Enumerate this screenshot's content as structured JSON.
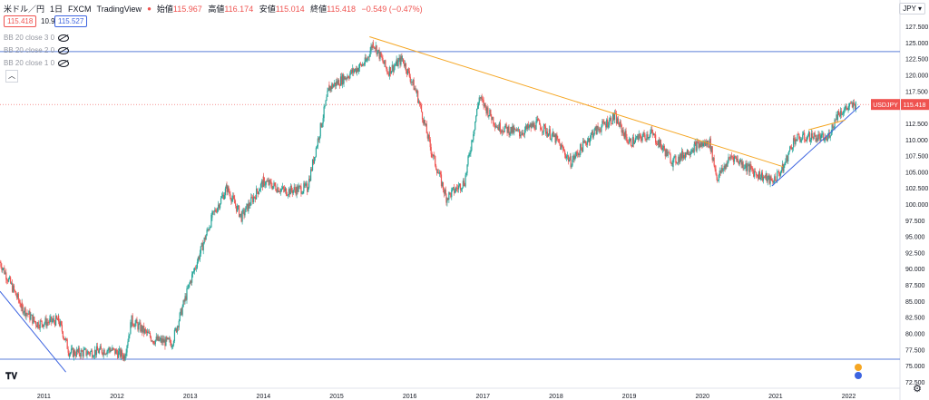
{
  "header": {
    "symbol": "米ドル／円",
    "interval": "1日",
    "broker": "FXCM",
    "platform": "TradingView",
    "open_label": "始値",
    "open": "115.967",
    "high_label": "高値",
    "high": "116.174",
    "low_label": "安値",
    "low": "115.014",
    "close_label": "終値",
    "close": "115.418",
    "change": "−0.549 (−0.47%)",
    "bid": "115.418",
    "spread": "10.9",
    "ask": "115.527"
  },
  "indicators": [
    "BB 20 close 3 0",
    "BB 20 close 2 0",
    "BB 20 close 1 0"
  ],
  "currency": "JPY",
  "price_tag": {
    "symbol": "USDJPY",
    "value": "115.418"
  },
  "colors": {
    "up": "#26a69a",
    "down": "#ef5350",
    "hline": "#5b7fd8",
    "orange": "#f5a623",
    "blue": "#3d64e0"
  },
  "chart_data": {
    "type": "candlestick",
    "x_ticks": [
      "2011",
      "2012",
      "2013",
      "2014",
      "2015",
      "2016",
      "2017",
      "2018",
      "2019",
      "2020",
      "2021",
      "2022"
    ],
    "y_ticks": [
      "72.500",
      "75.000",
      "77.500",
      "80.000",
      "82.500",
      "85.000",
      "87.500",
      "90.000",
      "92.500",
      "95.000",
      "97.500",
      "100.000",
      "102.500",
      "105.000",
      "107.500",
      "110.000",
      "112.500",
      "115.000",
      "117.500",
      "120.000",
      "122.500",
      "125.000",
      "127.500"
    ],
    "ylim": [
      71.5,
      128.5
    ],
    "xlim": [
      2010.4,
      2022.7
    ],
    "series": [
      {
        "values": [
          [
            2010.4,
            91.0
          ],
          [
            2010.7,
            84.0
          ],
          [
            2010.9,
            81.5
          ],
          [
            2011.2,
            82.0
          ],
          [
            2011.35,
            77.0
          ],
          [
            2011.6,
            77.0
          ],
          [
            2011.9,
            77.5
          ],
          [
            2012.1,
            76.5
          ],
          [
            2012.2,
            82.0
          ],
          [
            2012.5,
            79.0
          ],
          [
            2012.75,
            78.5
          ],
          [
            2013.0,
            88.0
          ],
          [
            2013.3,
            98.0
          ],
          [
            2013.5,
            102.5
          ],
          [
            2013.7,
            98.0
          ],
          [
            2014.0,
            103.5
          ],
          [
            2014.3,
            102.0
          ],
          [
            2014.6,
            102.5
          ],
          [
            2014.9,
            118.0
          ],
          [
            2015.1,
            119.5
          ],
          [
            2015.4,
            122.0
          ],
          [
            2015.5,
            125.0
          ],
          [
            2015.7,
            120.5
          ],
          [
            2015.9,
            122.5
          ],
          [
            2016.1,
            117.0
          ],
          [
            2016.3,
            108.0
          ],
          [
            2016.5,
            101.0
          ],
          [
            2016.75,
            103.5
          ],
          [
            2016.95,
            116.5
          ],
          [
            2017.2,
            112.0
          ],
          [
            2017.5,
            111.0
          ],
          [
            2017.75,
            112.5
          ],
          [
            2018.0,
            110.0
          ],
          [
            2018.2,
            106.5
          ],
          [
            2018.5,
            111.0
          ],
          [
            2018.8,
            113.5
          ],
          [
            2019.0,
            109.5
          ],
          [
            2019.3,
            111.0
          ],
          [
            2019.6,
            106.5
          ],
          [
            2019.9,
            109.0
          ],
          [
            2020.1,
            109.5
          ],
          [
            2020.2,
            104.0
          ],
          [
            2020.4,
            107.5
          ],
          [
            2020.7,
            105.0
          ],
          [
            2020.95,
            103.5
          ],
          [
            2021.1,
            105.5
          ],
          [
            2021.25,
            110.0
          ],
          [
            2021.5,
            110.5
          ],
          [
            2021.7,
            110.0
          ],
          [
            2021.85,
            114.0
          ],
          [
            2022.0,
            115.0
          ],
          [
            2022.1,
            115.4
          ]
        ]
      }
    ],
    "hlines": [
      123.6,
      76.0
    ],
    "trendlines": [
      {
        "color": "orange",
        "from": [
          2015.45,
          125.9
        ],
        "to": [
          2021.1,
          105.8
        ]
      },
      {
        "color": "blue",
        "from": [
          2020.95,
          102.8
        ],
        "to": [
          2022.15,
          115.2
        ]
      },
      {
        "color": "blue",
        "from": [
          2010.4,
          86.5
        ],
        "to": [
          2011.3,
          74.0
        ]
      },
      {
        "color": "orange",
        "from": [
          2021.45,
          111.5
        ],
        "to": [
          2021.95,
          113.0
        ]
      }
    ]
  }
}
